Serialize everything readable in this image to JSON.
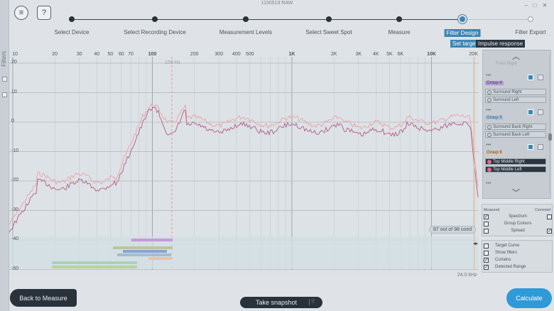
{
  "window": {
    "title": "1150519 RAW",
    "minimize": "–",
    "maximize": "□",
    "close": "✕"
  },
  "toolbar": {
    "menu_icon": "≡",
    "help_icon": "?"
  },
  "left_panel": {
    "label": "Filters"
  },
  "steps": [
    {
      "label": "Select Device",
      "state": "done"
    },
    {
      "label": "Select Recording Device",
      "state": "done"
    },
    {
      "label": "Measurement Levels",
      "state": "done"
    },
    {
      "label": "Select Sweet Spot",
      "state": "done"
    },
    {
      "label": "Measure",
      "state": "done"
    },
    {
      "label": "Filter Design",
      "state": "active"
    },
    {
      "label": "Filter Export",
      "state": "pending"
    }
  ],
  "subtabs": {
    "set_target": "Set target",
    "impulse": "Impulse response"
  },
  "plot": {
    "y_ticks": [
      "20",
      "10",
      "0",
      "-10",
      "-20",
      "-30",
      "-40",
      "-50"
    ],
    "x_ticks": [
      "10",
      "20",
      "30",
      "40",
      "50",
      "60",
      "70",
      "100",
      "200",
      "300",
      "400",
      "500",
      "1K",
      "2K",
      "3K",
      "4K",
      "5K",
      "6K",
      "10K",
      "20K"
    ],
    "marker_label": "150 Hz",
    "used_text": "87 out of 98 used",
    "max_freq": "24.0 kHz"
  },
  "groups": {
    "top_partial": "Front Right",
    "list": [
      {
        "dots": "•••",
        "name": "Group 4",
        "color": "#b79ad6",
        "channels": [
          "Surround Right",
          "Surround Left"
        ]
      },
      {
        "dots": "•••",
        "name": "Group 5",
        "color": "#a9c9e6",
        "channels": [
          "Surround Back Right",
          "Surround Back Left"
        ]
      },
      {
        "dots": "•••",
        "name": "Group 6",
        "color": "#e2c7a6",
        "channels": [
          "Top Middle Right",
          "Top Middle Left"
        ]
      }
    ],
    "bottom_partial": "•••"
  },
  "options": {
    "header_left": "Measured",
    "header_right": "Corrected",
    "rows": [
      {
        "label": "Spectrum",
        "measured": true,
        "corrected": false
      },
      {
        "label": "Group Colours",
        "measured": false,
        "corrected": null
      },
      {
        "label": "Spread",
        "measured": false,
        "corrected": true
      }
    ],
    "extra": [
      {
        "label": "Target Curve",
        "checked": false
      },
      {
        "label": "Show filters",
        "checked": false
      },
      {
        "label": "Curtains",
        "checked": true
      },
      {
        "label": "Detected Range",
        "checked": true
      }
    ]
  },
  "bottom": {
    "back": "Back to Measure",
    "snapshot": "Take snapshot",
    "calculate": "Calculate"
  }
}
